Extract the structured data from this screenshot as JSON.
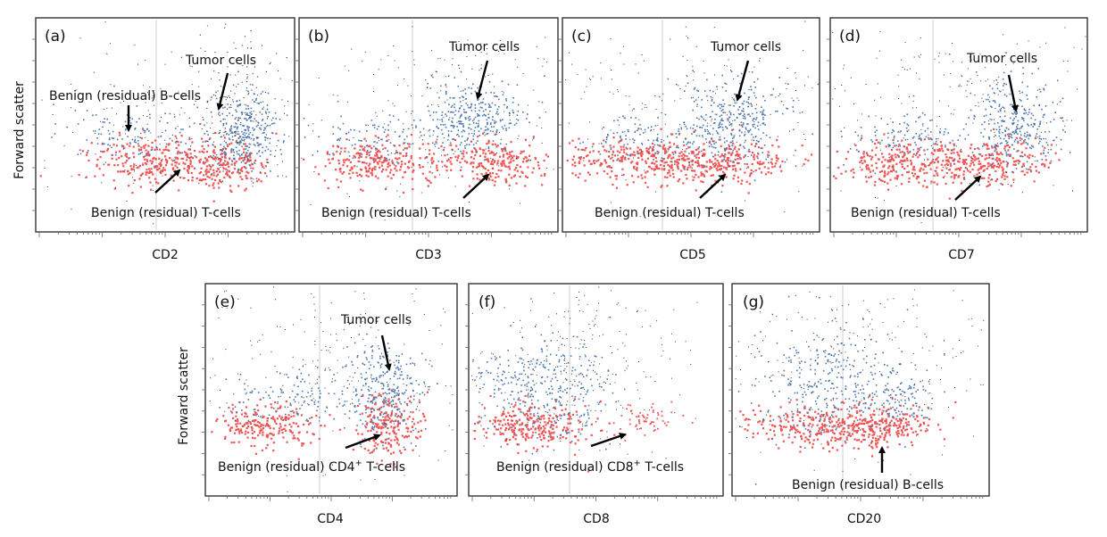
{
  "chart_data": [
    {
      "type": "scatter",
      "panel": "(a)",
      "xlabel": "CD2",
      "ylabel": "Forward scatter",
      "series": [
        {
          "name": "Tumor cells",
          "color": "#4a78b0"
        },
        {
          "name": "Benign (residual) B-cells",
          "color": "#4a78b0"
        },
        {
          "name": "Benign (residual) T-cells",
          "color": "#f05555"
        }
      ],
      "annotations": [
        {
          "text": "Tumor cells"
        },
        {
          "text": "Benign (residual) B-cells"
        },
        {
          "text": "Benign (residual) T-cells"
        }
      ]
    },
    {
      "type": "scatter",
      "panel": "(b)",
      "xlabel": "CD3",
      "annotations": [
        {
          "text": "Tumor cells"
        },
        {
          "text": "Benign (residual) T-cells"
        }
      ]
    },
    {
      "type": "scatter",
      "panel": "(c)",
      "xlabel": "CD5",
      "annotations": [
        {
          "text": "Tumor cells"
        },
        {
          "text": "Benign (residual) T-cells"
        }
      ]
    },
    {
      "type": "scatter",
      "panel": "(d)",
      "xlabel": "CD7",
      "annotations": [
        {
          "text": "Tumor cells"
        },
        {
          "text": "Benign (residual) T-cells"
        }
      ]
    },
    {
      "type": "scatter",
      "panel": "(e)",
      "xlabel": "CD4",
      "ylabel": "Forward scatter",
      "annotations": [
        {
          "text": "Tumor cells"
        },
        {
          "text": "Benign (residual) CD4",
          "sup": "+",
          "tail": " T-cells"
        }
      ]
    },
    {
      "type": "scatter",
      "panel": "(f)",
      "xlabel": "CD8",
      "annotations": [
        {
          "text": "Benign (residual) CD8",
          "sup": "+",
          "tail": " T-cells"
        }
      ]
    },
    {
      "type": "scatter",
      "panel": "(g)",
      "xlabel": "CD20",
      "annotations": [
        {
          "text": "Benign (residual) B-cells"
        }
      ]
    }
  ],
  "colors": {
    "blue_population": "#4a78b0",
    "red_population": "#f05555",
    "background_dots": "#333333"
  }
}
